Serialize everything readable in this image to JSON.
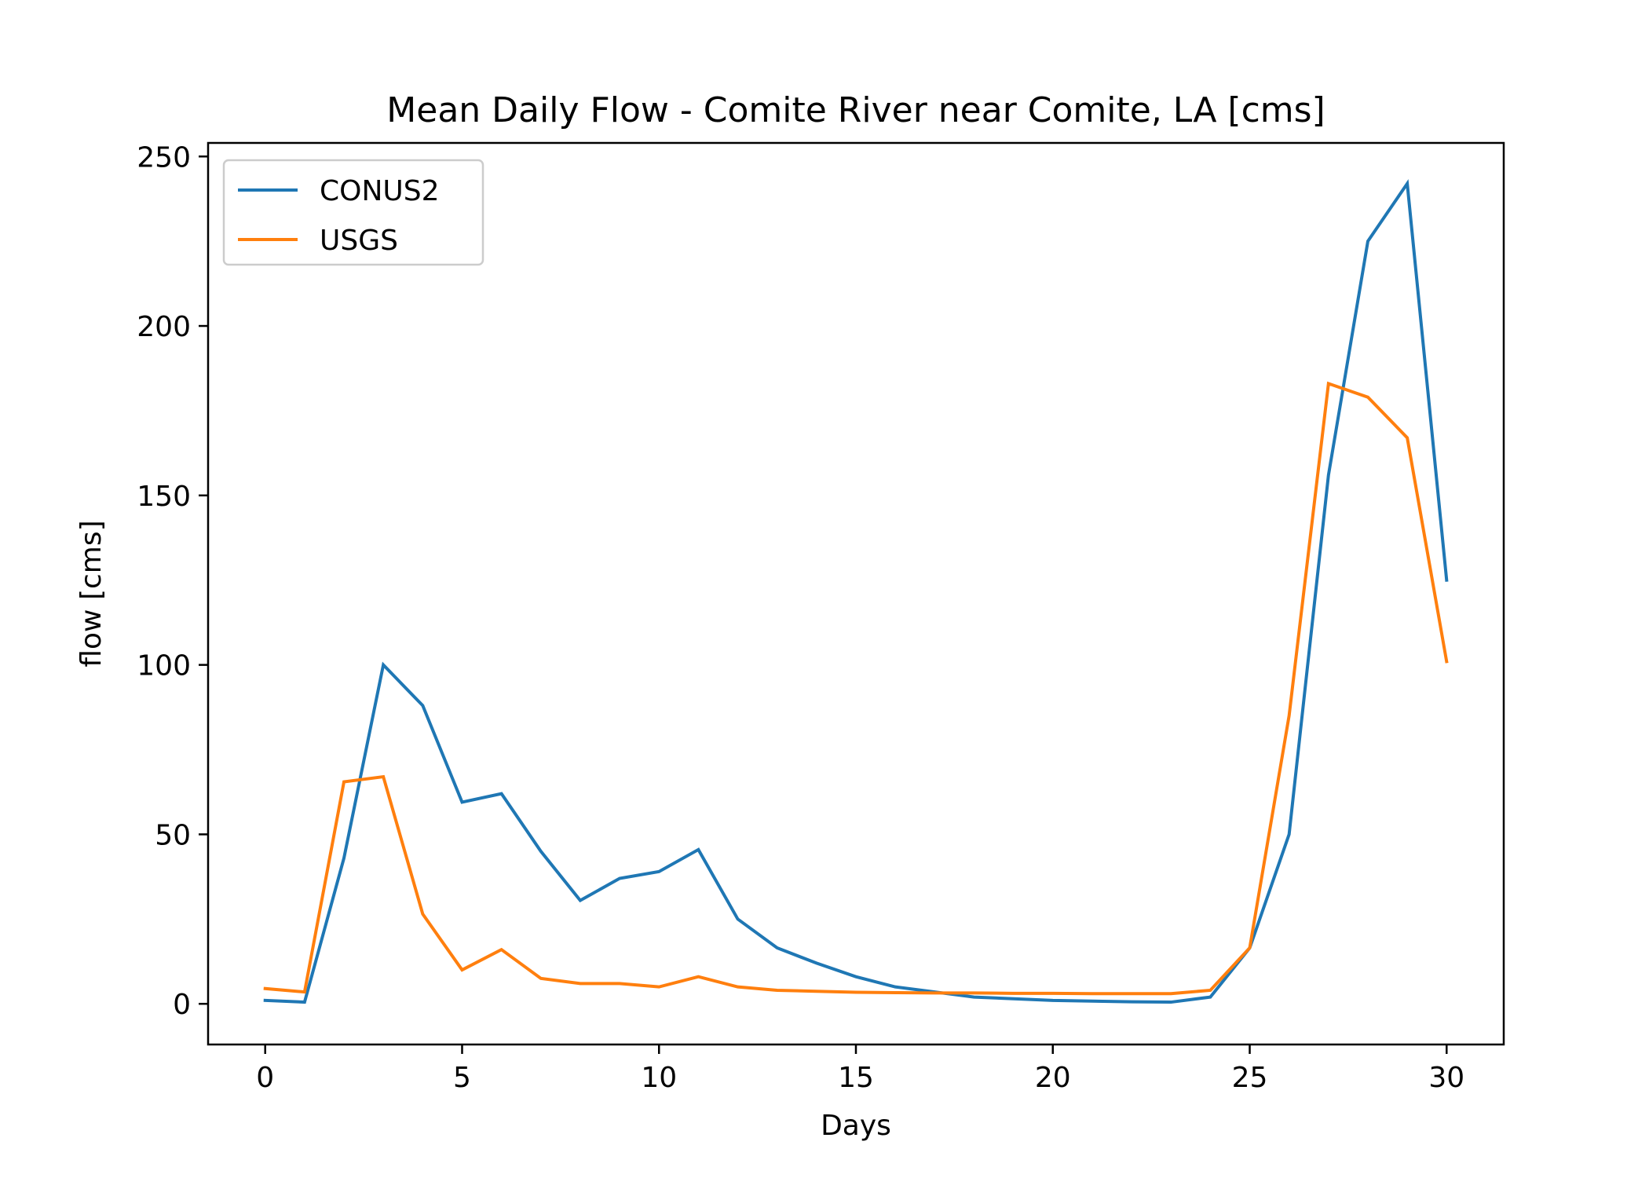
{
  "chart_data": {
    "type": "line",
    "title": "Mean Daily Flow - Comite River near Comite, LA [cms]",
    "xlabel": "Days",
    "ylabel": "flow [cms]",
    "xlim": [
      -1.45,
      31.45
    ],
    "ylim": [
      -12,
      254
    ],
    "xticks": [
      0,
      5,
      10,
      15,
      20,
      25,
      30
    ],
    "yticks": [
      0,
      50,
      100,
      150,
      200,
      250
    ],
    "grid": false,
    "legend_position": "top-left",
    "x": [
      0,
      1,
      2,
      3,
      4,
      5,
      6,
      7,
      8,
      9,
      10,
      11,
      12,
      13,
      14,
      15,
      16,
      17,
      18,
      19,
      20,
      21,
      22,
      23,
      24,
      25,
      26,
      27,
      28,
      29,
      30
    ],
    "series": [
      {
        "name": "CONUS2",
        "color": "#1f77b4",
        "values": [
          1,
          0.5,
          43,
          100,
          88,
          59.5,
          62,
          45,
          30.5,
          37,
          39,
          45.5,
          25,
          16.5,
          12,
          8,
          5,
          3.5,
          2,
          1.5,
          1,
          0.8,
          0.6,
          0.5,
          2,
          16.5,
          50,
          156,
          225,
          242,
          125
        ]
      },
      {
        "name": "USGS",
        "color": "#ff7f0e",
        "values": [
          4.5,
          3.5,
          65.5,
          67,
          26.5,
          10,
          16,
          7.5,
          6,
          6,
          5,
          8,
          5,
          4,
          3.7,
          3.4,
          3.3,
          3.2,
          3.2,
          3.1,
          3.1,
          3,
          3,
          3,
          4,
          16.5,
          85,
          183,
          179,
          167,
          101
        ]
      }
    ]
  }
}
